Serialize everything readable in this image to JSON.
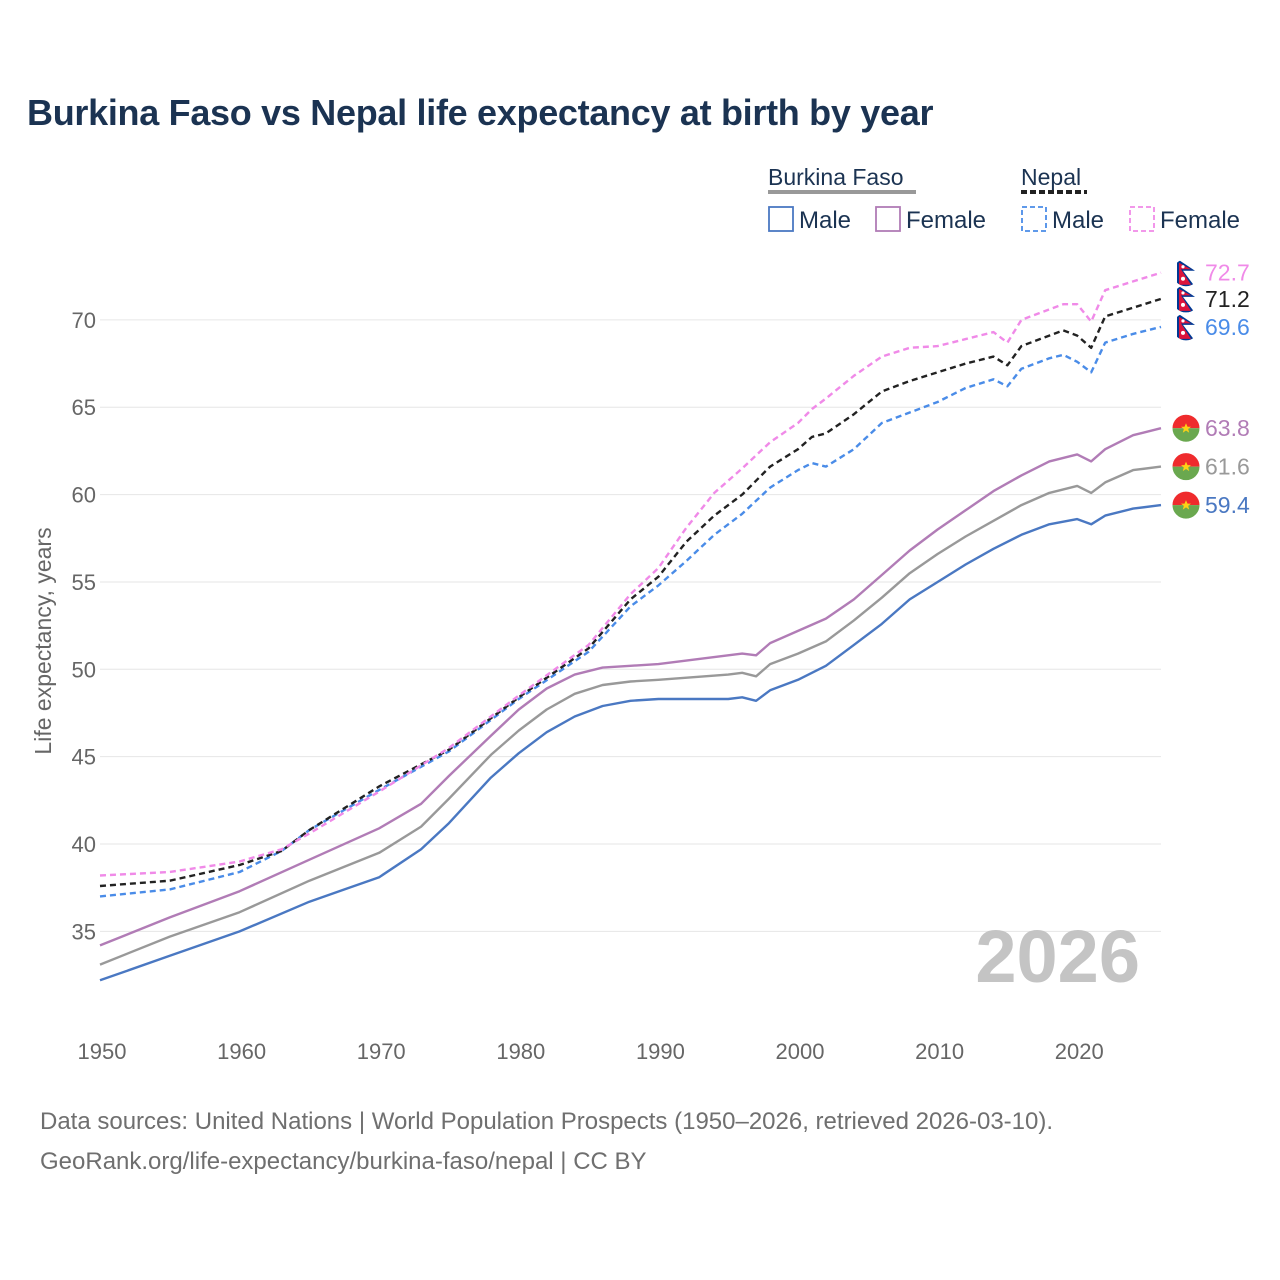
{
  "title": "Burkina Faso vs Nepal life expectancy at birth by year",
  "source_line": "Data sources: United Nations | World Population Prospects (1950–2026, retrieved 2026-03-10).",
  "credit_line": "GeoRank.org/life-expectancy/burkina-faso/nepal | CC BY",
  "year_watermark": "2026",
  "legend": {
    "groups": [
      {
        "name": "Burkina Faso",
        "line_color": "#999999",
        "dashed": false,
        "items": [
          {
            "label": "Male",
            "color": "#4a78c2"
          },
          {
            "label": "Female",
            "color": "#b17cb6"
          }
        ]
      },
      {
        "name": "Nepal",
        "line_color": "#222222",
        "dashed": true,
        "items": [
          {
            "label": "Male",
            "color": "#4a8ce8"
          },
          {
            "label": "Female",
            "color": "#f08ae8"
          }
        ]
      }
    ]
  },
  "chart_data": {
    "type": "line",
    "title": "Burkina Faso vs Nepal life expectancy at birth by year",
    "xlabel": "",
    "ylabel": "Life expectancy, years",
    "xlim": [
      1950,
      2026
    ],
    "ylim": [
      30.5,
      74
    ],
    "x_ticks": [
      1950,
      1960,
      1970,
      1980,
      1990,
      2000,
      2010,
      2020
    ],
    "y_ticks": [
      35,
      40,
      45,
      50,
      55,
      60,
      65,
      70
    ],
    "grid": true,
    "series": [
      {
        "name": "Burkina Faso Male",
        "country": "Burkina Faso",
        "color": "#4a78c2",
        "dash": false,
        "end_label": "59.4",
        "flag": "burkina-faso",
        "points": [
          [
            1950,
            32.2
          ],
          [
            1955,
            33.6
          ],
          [
            1960,
            35.0
          ],
          [
            1965,
            36.7
          ],
          [
            1970,
            38.1
          ],
          [
            1973,
            39.7
          ],
          [
            1975,
            41.2
          ],
          [
            1978,
            43.8
          ],
          [
            1980,
            45.2
          ],
          [
            1982,
            46.4
          ],
          [
            1984,
            47.3
          ],
          [
            1986,
            47.9
          ],
          [
            1988,
            48.2
          ],
          [
            1990,
            48.3
          ],
          [
            1995,
            48.3
          ],
          [
            1996,
            48.4
          ],
          [
            1997,
            48.2
          ],
          [
            1998,
            48.8
          ],
          [
            2000,
            49.4
          ],
          [
            2002,
            50.2
          ],
          [
            2004,
            51.4
          ],
          [
            2006,
            52.6
          ],
          [
            2008,
            54.0
          ],
          [
            2010,
            55.0
          ],
          [
            2012,
            56.0
          ],
          [
            2014,
            56.9
          ],
          [
            2016,
            57.7
          ],
          [
            2018,
            58.3
          ],
          [
            2020,
            58.6
          ],
          [
            2021,
            58.3
          ],
          [
            2022,
            58.8
          ],
          [
            2024,
            59.2
          ],
          [
            2026,
            59.4
          ]
        ]
      },
      {
        "name": "Burkina Faso Total",
        "country": "Burkina Faso",
        "color": "#999999",
        "dash": false,
        "end_label": "61.6",
        "flag": "burkina-faso",
        "points": [
          [
            1950,
            33.1
          ],
          [
            1955,
            34.7
          ],
          [
            1960,
            36.1
          ],
          [
            1965,
            37.9
          ],
          [
            1970,
            39.5
          ],
          [
            1973,
            41.0
          ],
          [
            1975,
            42.6
          ],
          [
            1978,
            45.1
          ],
          [
            1980,
            46.5
          ],
          [
            1982,
            47.7
          ],
          [
            1984,
            48.6
          ],
          [
            1986,
            49.1
          ],
          [
            1988,
            49.3
          ],
          [
            1990,
            49.4
          ],
          [
            1995,
            49.7
          ],
          [
            1996,
            49.8
          ],
          [
            1997,
            49.6
          ],
          [
            1998,
            50.3
          ],
          [
            2000,
            50.9
          ],
          [
            2002,
            51.6
          ],
          [
            2004,
            52.8
          ],
          [
            2006,
            54.1
          ],
          [
            2008,
            55.5
          ],
          [
            2010,
            56.6
          ],
          [
            2012,
            57.6
          ],
          [
            2014,
            58.5
          ],
          [
            2016,
            59.4
          ],
          [
            2018,
            60.1
          ],
          [
            2020,
            60.5
          ],
          [
            2021,
            60.1
          ],
          [
            2022,
            60.7
          ],
          [
            2024,
            61.4
          ],
          [
            2026,
            61.6
          ]
        ]
      },
      {
        "name": "Burkina Faso Female",
        "country": "Burkina Faso",
        "color": "#b17cb6",
        "dash": false,
        "end_label": "63.8",
        "flag": "burkina-faso",
        "points": [
          [
            1950,
            34.2
          ],
          [
            1955,
            35.8
          ],
          [
            1960,
            37.3
          ],
          [
            1965,
            39.1
          ],
          [
            1970,
            40.9
          ],
          [
            1973,
            42.3
          ],
          [
            1975,
            43.9
          ],
          [
            1978,
            46.2
          ],
          [
            1980,
            47.7
          ],
          [
            1982,
            48.9
          ],
          [
            1984,
            49.7
          ],
          [
            1986,
            50.1
          ],
          [
            1988,
            50.2
          ],
          [
            1990,
            50.3
          ],
          [
            1995,
            50.8
          ],
          [
            1996,
            50.9
          ],
          [
            1997,
            50.8
          ],
          [
            1998,
            51.5
          ],
          [
            2000,
            52.2
          ],
          [
            2002,
            52.9
          ],
          [
            2004,
            54.0
          ],
          [
            2006,
            55.4
          ],
          [
            2008,
            56.8
          ],
          [
            2010,
            58.0
          ],
          [
            2012,
            59.1
          ],
          [
            2014,
            60.2
          ],
          [
            2016,
            61.1
          ],
          [
            2018,
            61.9
          ],
          [
            2020,
            62.3
          ],
          [
            2021,
            61.9
          ],
          [
            2022,
            62.6
          ],
          [
            2024,
            63.4
          ],
          [
            2026,
            63.8
          ]
        ]
      },
      {
        "name": "Nepal Male",
        "country": "Nepal",
        "color": "#4a8ce8",
        "dash": true,
        "end_label": "69.6",
        "flag": "nepal",
        "points": [
          [
            1950,
            37.0
          ],
          [
            1955,
            37.4
          ],
          [
            1960,
            38.4
          ],
          [
            1963,
            39.6
          ],
          [
            1965,
            40.8
          ],
          [
            1970,
            43.1
          ],
          [
            1975,
            45.3
          ],
          [
            1980,
            48.3
          ],
          [
            1985,
            51.0
          ],
          [
            1988,
            53.6
          ],
          [
            1990,
            54.8
          ],
          [
            1992,
            56.2
          ],
          [
            1994,
            57.7
          ],
          [
            1996,
            58.9
          ],
          [
            1998,
            60.4
          ],
          [
            2000,
            61.4
          ],
          [
            2001,
            61.8
          ],
          [
            2002,
            61.6
          ],
          [
            2004,
            62.6
          ],
          [
            2006,
            64.1
          ],
          [
            2008,
            64.7
          ],
          [
            2010,
            65.3
          ],
          [
            2012,
            66.1
          ],
          [
            2014,
            66.6
          ],
          [
            2015,
            66.2
          ],
          [
            2016,
            67.2
          ],
          [
            2018,
            67.8
          ],
          [
            2019,
            68.0
          ],
          [
            2020,
            67.6
          ],
          [
            2021,
            67.0
          ],
          [
            2022,
            68.7
          ],
          [
            2024,
            69.2
          ],
          [
            2026,
            69.6
          ]
        ]
      },
      {
        "name": "Nepal Total",
        "country": "Nepal",
        "color": "#222222",
        "dash": true,
        "end_label": "71.2",
        "flag": "nepal",
        "points": [
          [
            1950,
            37.6
          ],
          [
            1955,
            37.9
          ],
          [
            1960,
            38.8
          ],
          [
            1963,
            39.6
          ],
          [
            1965,
            40.8
          ],
          [
            1970,
            43.3
          ],
          [
            1975,
            45.4
          ],
          [
            1980,
            48.4
          ],
          [
            1985,
            51.2
          ],
          [
            1988,
            54.0
          ],
          [
            1990,
            55.3
          ],
          [
            1992,
            57.3
          ],
          [
            1994,
            58.8
          ],
          [
            1996,
            60.0
          ],
          [
            1998,
            61.6
          ],
          [
            2000,
            62.6
          ],
          [
            2001,
            63.3
          ],
          [
            2002,
            63.5
          ],
          [
            2004,
            64.6
          ],
          [
            2006,
            65.9
          ],
          [
            2008,
            66.5
          ],
          [
            2010,
            67.0
          ],
          [
            2012,
            67.5
          ],
          [
            2014,
            67.9
          ],
          [
            2015,
            67.4
          ],
          [
            2016,
            68.5
          ],
          [
            2018,
            69.1
          ],
          [
            2019,
            69.4
          ],
          [
            2020,
            69.1
          ],
          [
            2021,
            68.4
          ],
          [
            2022,
            70.2
          ],
          [
            2024,
            70.7
          ],
          [
            2026,
            71.2
          ]
        ]
      },
      {
        "name": "Nepal Female",
        "country": "Nepal",
        "color": "#f08ae8",
        "dash": true,
        "end_label": "72.7",
        "flag": "nepal",
        "points": [
          [
            1950,
            38.2
          ],
          [
            1955,
            38.4
          ],
          [
            1960,
            39.0
          ],
          [
            1963,
            39.7
          ],
          [
            1965,
            40.6
          ],
          [
            1970,
            43.0
          ],
          [
            1975,
            45.5
          ],
          [
            1980,
            48.5
          ],
          [
            1985,
            51.4
          ],
          [
            1988,
            54.3
          ],
          [
            1990,
            55.8
          ],
          [
            1992,
            58.1
          ],
          [
            1994,
            60.1
          ],
          [
            1996,
            61.5
          ],
          [
            1998,
            63.0
          ],
          [
            2000,
            64.1
          ],
          [
            2001,
            64.9
          ],
          [
            2002,
            65.5
          ],
          [
            2004,
            66.8
          ],
          [
            2006,
            67.9
          ],
          [
            2008,
            68.4
          ],
          [
            2010,
            68.5
          ],
          [
            2012,
            68.9
          ],
          [
            2014,
            69.3
          ],
          [
            2015,
            68.7
          ],
          [
            2016,
            70.0
          ],
          [
            2018,
            70.6
          ],
          [
            2019,
            70.9
          ],
          [
            2020,
            70.9
          ],
          [
            2021,
            69.9
          ],
          [
            2022,
            71.7
          ],
          [
            2024,
            72.2
          ],
          [
            2026,
            72.7
          ]
        ]
      }
    ]
  }
}
